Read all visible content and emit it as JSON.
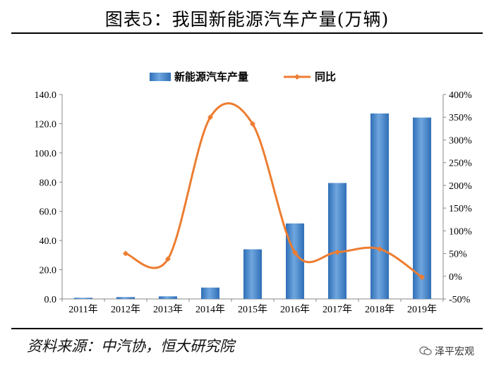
{
  "header": {
    "title": "图表5：我国新能源汽车产量(万辆)"
  },
  "footer": {
    "source": "资料来源：中汽协，恒大研究院",
    "watermark": "泽平宏观"
  },
  "colors": {
    "bar": "#2f6fb6",
    "bar_light": "#6fa6df",
    "line": "#ed7d31"
  },
  "chart_data": {
    "type": "bar",
    "categories": [
      "2011年",
      "2012年",
      "2013年",
      "2014年",
      "2015年",
      "2016年",
      "2017年",
      "2018年",
      "2019年"
    ],
    "series": [
      {
        "name": "新能源汽车产量",
        "type": "bar",
        "axis": "left",
        "values": [
          0.8,
          1.3,
          1.8,
          7.8,
          34.0,
          51.7,
          79.4,
          127.0,
          124.2
        ]
      },
      {
        "name": "同比",
        "type": "line",
        "axis": "right",
        "values": [
          null,
          50,
          38,
          350,
          335,
          52,
          53,
          60,
          -2
        ]
      }
    ],
    "ylim": [
      0,
      140
    ],
    "y_ticks": [
      "0.0",
      "20.0",
      "40.0",
      "60.0",
      "80.0",
      "100.0",
      "120.0",
      "140.0"
    ],
    "y2lim": [
      -50,
      400
    ],
    "y2_ticks": [
      "-50%",
      "0%",
      "50%",
      "100%",
      "150%",
      "200%",
      "250%",
      "300%",
      "350%",
      "400%"
    ],
    "legend_position": "top-center",
    "grid": false
  }
}
